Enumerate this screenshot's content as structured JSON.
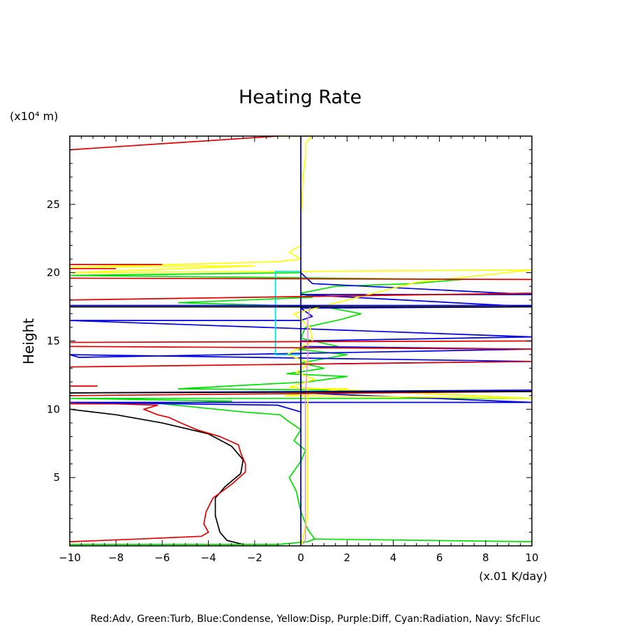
{
  "chart_data": {
    "type": "line",
    "title": "Heating Rate",
    "ylabel": "Height",
    "yunit": "(x10⁴ m)",
    "xunit": "(x.01 K/day)",
    "xlim": [
      -10,
      10
    ],
    "ylim": [
      0,
      30
    ],
    "xticks": [
      -10,
      -8,
      -6,
      -4,
      -2,
      0,
      2,
      4,
      6,
      8,
      10
    ],
    "yticks": [
      5,
      10,
      15,
      20,
      25
    ],
    "legend_text": "Red:Adv, Green:Turb, Blue:Condense, Yellow:Disp, Purple:Diff, Cyan:Radiation, Navy: SfcFluc",
    "colors": {
      "adv": "#e00000",
      "turb": "#00e000",
      "condense": "#0000e0",
      "disp": "#ffff00",
      "diff": "#e098d0",
      "radiation": "#00e0e0",
      "sfcfluc": "#000080",
      "total": "#000000"
    },
    "series": [
      {
        "key": "total",
        "color": "#000000",
        "points": [
          [
            -10,
            10
          ],
          [
            -8,
            9.6
          ],
          [
            -6,
            9
          ],
          [
            -4,
            8.2
          ],
          [
            -3,
            7.3
          ],
          [
            -2.5,
            6.3
          ],
          [
            -2.6,
            5.3
          ],
          [
            -3.3,
            4.3
          ],
          [
            -3.7,
            3.5
          ],
          [
            -3.7,
            2.2
          ],
          [
            -3.5,
            1.0
          ],
          [
            -3.2,
            0.4
          ],
          [
            -2.5,
            0.1
          ]
        ]
      },
      {
        "key": "adv",
        "color": "#e00000",
        "points": [
          [
            -10,
            0.3
          ],
          [
            -7,
            0.5
          ],
          [
            -4.3,
            0.7
          ],
          [
            -4,
            1.0
          ],
          [
            -4.2,
            1.6
          ],
          [
            -4.1,
            2.5
          ],
          [
            -3.8,
            3.5
          ],
          [
            -3,
            4.5
          ],
          [
            -2.4,
            5.4
          ],
          [
            -2.4,
            6.0
          ],
          [
            -2.6,
            6.8
          ],
          [
            -2.7,
            7.4
          ],
          [
            -3.5,
            8.0
          ],
          [
            -4.5,
            8.5
          ],
          [
            -5.2,
            9.0
          ],
          [
            -5.7,
            9.4
          ],
          [
            -6.2,
            9.6
          ],
          [
            -6.8,
            10.0
          ],
          [
            -6.2,
            10.3
          ],
          [
            -8,
            10.4
          ],
          [
            -10,
            10.4
          ]
        ]
      },
      {
        "key": "turb",
        "color": "#00e000",
        "points": [
          [
            -10,
            0.1
          ],
          [
            -1,
            0.1
          ],
          [
            0.3,
            0.3
          ],
          [
            0.6,
            0.5
          ],
          [
            10,
            0.3
          ],
          [
            0.6,
            0.5
          ],
          [
            0.3,
            1.2
          ],
          [
            0,
            2.5
          ],
          [
            -0.2,
            4.0
          ],
          [
            -0.5,
            5.0
          ],
          [
            0,
            6.2
          ],
          [
            0.2,
            7.0
          ],
          [
            -0.3,
            7.7
          ],
          [
            0,
            8.5
          ],
          [
            -0.6,
            9.2
          ],
          [
            -0.9,
            9.6
          ],
          [
            -2.5,
            9.8
          ],
          [
            -6,
            10.4
          ],
          [
            -3,
            10.6
          ],
          [
            -10,
            10.8
          ],
          [
            10,
            10.8
          ],
          [
            2,
            11.4
          ],
          [
            -5.3,
            11.5
          ],
          [
            -2,
            11.8
          ],
          [
            0.3,
            12
          ],
          [
            2,
            12.4
          ],
          [
            -0.6,
            12.6
          ],
          [
            1,
            13
          ],
          [
            0,
            13.4
          ],
          [
            2,
            14
          ],
          [
            -0.2,
            14.4
          ],
          [
            1.6,
            14.6
          ],
          [
            0,
            15.2
          ],
          [
            0.2,
            16
          ],
          [
            1.8,
            16.6
          ],
          [
            2.6,
            17.0
          ],
          [
            1,
            17.5
          ],
          [
            -5.3,
            17.8
          ],
          [
            0.5,
            18.2
          ],
          [
            0,
            18.5
          ],
          [
            1.5,
            19
          ],
          [
            4.8,
            19.2
          ],
          [
            7,
            19.5
          ],
          [
            -10,
            19.8
          ],
          [
            0,
            20
          ]
        ]
      },
      {
        "key": "condense",
        "color": "#0000e0",
        "points": [
          [
            0,
            9.8
          ],
          [
            -1,
            10.3
          ],
          [
            -10,
            10.5
          ],
          [
            10,
            10.5
          ],
          [
            0,
            11.2
          ],
          [
            0,
            13.3
          ],
          [
            10,
            13.5
          ],
          [
            -10,
            14
          ],
          [
            -9.6,
            13.8
          ],
          [
            10,
            14.4
          ],
          [
            0,
            14.6
          ],
          [
            0,
            15
          ],
          [
            10,
            15.3
          ],
          [
            -10,
            16.5
          ],
          [
            0,
            16.5
          ],
          [
            0.5,
            16.8
          ],
          [
            0,
            17.4
          ],
          [
            10,
            17.5
          ],
          [
            0,
            18.4
          ],
          [
            10,
            18.4
          ],
          [
            0.5,
            19.2
          ],
          [
            0,
            20
          ],
          [
            0,
            20.2
          ]
        ]
      },
      {
        "key": "disp",
        "color": "#ffff00",
        "points": [
          [
            0,
            0
          ],
          [
            0.3,
            2
          ],
          [
            0.3,
            8
          ],
          [
            0.3,
            11.5
          ],
          [
            2,
            11.5
          ],
          [
            -0.7,
            11
          ],
          [
            10,
            10.8
          ],
          [
            -0.5,
            11.6
          ],
          [
            0.6,
            12.2
          ],
          [
            -0.2,
            12.7
          ],
          [
            0.4,
            13.4
          ],
          [
            -0.6,
            14
          ],
          [
            0.5,
            15
          ],
          [
            0.4,
            16
          ],
          [
            -0.3,
            17
          ],
          [
            5,
            19.3
          ],
          [
            10,
            20.2
          ],
          [
            -10,
            20
          ],
          [
            -2,
            20.5
          ],
          [
            -10,
            20.4
          ],
          [
            -1,
            20.8
          ],
          [
            0,
            21
          ],
          [
            -0.5,
            21.5
          ],
          [
            0,
            22
          ],
          [
            0,
            24
          ],
          [
            0.1,
            27
          ],
          [
            0.2,
            28.5
          ],
          [
            0.2,
            29.5
          ],
          [
            0.5,
            30
          ],
          [
            -1,
            30
          ]
        ]
      },
      {
        "key": "diff",
        "color": "#e098d0",
        "points": [
          [
            0.1,
            0.1
          ],
          [
            0.2,
            0.5
          ],
          [
            0.2,
            5
          ],
          [
            0.2,
            9.5
          ],
          [
            0.2,
            11
          ],
          [
            0.3,
            14
          ],
          [
            0.3,
            16.5
          ],
          [
            0.4,
            17.5
          ]
        ]
      },
      {
        "key": "radiation",
        "color": "#00e0e0",
        "points": [
          [
            0,
            14
          ],
          [
            -1.1,
            14
          ],
          [
            -1.1,
            20.1
          ],
          [
            0,
            20.1
          ]
        ]
      },
      {
        "key": "sfcfluc",
        "color": "#000080",
        "points": [
          [
            0,
            0
          ],
          [
            0,
            30
          ]
        ]
      },
      {
        "key": "adv-spike-1",
        "color": "#e00000",
        "points": [
          [
            -10,
            29
          ],
          [
            -1,
            30
          ]
        ]
      },
      {
        "key": "adv-spike-2",
        "color": "#e00000",
        "points": [
          [
            -10,
            11.7
          ],
          [
            -8.8,
            11.7
          ]
        ]
      },
      {
        "key": "adv-spike-3",
        "color": "#e00000",
        "points": [
          [
            -10,
            13.1
          ],
          [
            10,
            13.5
          ]
        ]
      },
      {
        "key": "adv-spike-4",
        "color": "#e00000",
        "points": [
          [
            -10,
            14.6
          ],
          [
            10,
            14.4
          ]
        ]
      },
      {
        "key": "adv-spike-5",
        "color": "#e00000",
        "points": [
          [
            -10,
            14.9
          ],
          [
            10,
            15.0
          ]
        ]
      },
      {
        "key": "adv-spike-6",
        "color": "#e00000",
        "points": [
          [
            -10,
            18.0
          ],
          [
            10,
            18.5
          ]
        ]
      },
      {
        "key": "adv-spike-7",
        "color": "#e00000",
        "points": [
          [
            -10,
            19.6
          ],
          [
            10,
            19.5
          ]
        ]
      },
      {
        "key": "adv-spike-8",
        "color": "#e00000",
        "points": [
          [
            -10,
            20.3
          ],
          [
            -8,
            20.3
          ]
        ]
      },
      {
        "key": "adv-spike-9",
        "color": "#e00000",
        "points": [
          [
            -10,
            20.6
          ],
          [
            -6,
            20.6
          ]
        ]
      },
      {
        "key": "adv-spike-10",
        "color": "#e00000",
        "points": [
          [
            -10,
            11.0
          ],
          [
            10,
            11.3
          ]
        ]
      },
      {
        "key": "condense-spike-1",
        "color": "#0000e0",
        "points": [
          [
            -10,
            17.6
          ],
          [
            10,
            17.6
          ]
        ]
      },
      {
        "key": "condense-spike-2",
        "color": "#0000e0",
        "points": [
          [
            -10,
            11.2
          ],
          [
            10,
            11.4
          ]
        ]
      },
      {
        "key": "total-spike-1",
        "color": "#000000",
        "points": [
          [
            -10,
            11.2
          ],
          [
            10,
            11.3
          ]
        ]
      },
      {
        "key": "total-spike-2",
        "color": "#000000",
        "points": [
          [
            -10,
            17.5
          ],
          [
            10,
            17.5
          ]
        ]
      }
    ]
  }
}
